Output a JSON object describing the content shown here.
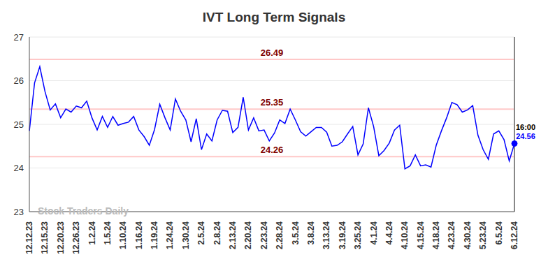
{
  "chart_data": {
    "type": "line",
    "title": "IVT Long Term Signals",
    "watermark": "Stock Traders Daily",
    "categories": [
      "12.12.23",
      null,
      null,
      "12.15.23",
      null,
      null,
      "12.20.23",
      null,
      null,
      "12.26.23",
      null,
      null,
      "1.2.24",
      null,
      null,
      "1.5.24",
      null,
      null,
      "1.10.24",
      null,
      null,
      "1.16.24",
      null,
      null,
      "1.19.24",
      null,
      null,
      "1.24.24",
      null,
      null,
      "1.30.24",
      null,
      null,
      "2.5.24",
      null,
      null,
      "2.8.24",
      null,
      null,
      "2.13.24",
      null,
      null,
      "2.20.24",
      null,
      null,
      "2.23.24",
      null,
      null,
      "2.28.24",
      null,
      null,
      "3.5.24",
      null,
      null,
      "3.8.24",
      null,
      null,
      "3.13.24",
      null,
      null,
      "3.19.24",
      null,
      null,
      "3.25.24",
      null,
      null,
      "4.1.24",
      null,
      null,
      "4.4.24",
      null,
      null,
      "4.10.24",
      null,
      null,
      "4.15.24",
      null,
      null,
      "4.18.24",
      null,
      null,
      "4.23.24",
      null,
      null,
      "4.30.24",
      null,
      null,
      "5.23.24",
      null,
      null,
      "6.5.24",
      null,
      null,
      "6.12.24"
    ],
    "values": [
      24.85,
      25.95,
      26.32,
      25.75,
      25.33,
      25.47,
      25.15,
      25.35,
      25.28,
      25.42,
      25.38,
      25.53,
      25.15,
      24.87,
      25.18,
      24.93,
      25.18,
      24.98,
      25.02,
      25.05,
      25.18,
      24.87,
      24.72,
      24.52,
      24.88,
      25.46,
      25.15,
      24.87,
      25.58,
      25.3,
      25.1,
      24.6,
      25.13,
      24.42,
      24.78,
      24.62,
      25.1,
      25.32,
      25.3,
      24.81,
      24.93,
      25.62,
      24.87,
      25.15,
      24.85,
      24.87,
      24.62,
      24.8,
      25.1,
      25.02,
      25.35,
      25.1,
      24.83,
      24.73,
      24.83,
      24.93,
      24.93,
      24.82,
      24.5,
      24.52,
      24.6,
      24.78,
      24.95,
      24.3,
      24.55,
      25.38,
      24.95,
      24.28,
      24.4,
      24.57,
      24.87,
      24.98,
      23.98,
      24.05,
      24.3,
      24.05,
      24.07,
      24.02,
      24.52,
      24.85,
      25.15,
      25.5,
      25.45,
      25.28,
      25.33,
      25.43,
      24.75,
      24.42,
      24.2,
      24.78,
      24.85,
      24.65,
      24.16,
      24.56
    ],
    "color": "#0000ff",
    "ylim": [
      23,
      27
    ],
    "yticks": [
      23,
      24,
      25,
      26,
      27
    ],
    "grid": true,
    "reference_lines": [
      26.49,
      25.35,
      24.26
    ],
    "last_time": "16:00"
  }
}
